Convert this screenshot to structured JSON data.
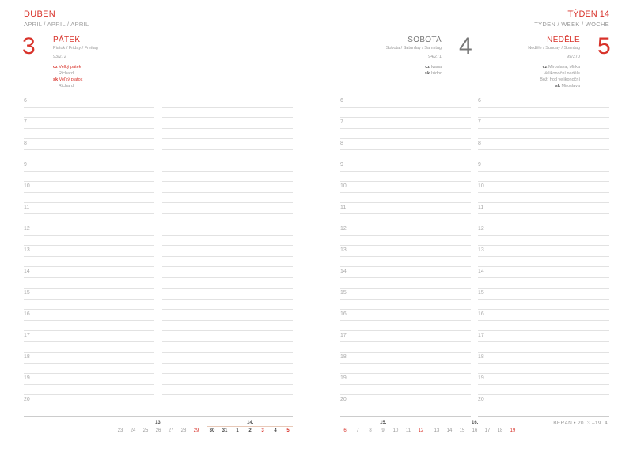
{
  "left_page": {
    "month": "DUBEN",
    "month_sub": "APRIL / APRIL / APRIL",
    "day": {
      "number": "3",
      "name": "PÁTEK",
      "translations": "Piatok / Friday / Freitag",
      "day_of_year": "93/272",
      "cz_label": "cz",
      "cz_text": "Velký pátek",
      "cz_name": "Richard",
      "sk_label": "sk",
      "sk_text": "Veľký piatok",
      "sk_name": "Richard"
    }
  },
  "right_page": {
    "week": "TÝDEN 14",
    "week_sub": "TÝDEN / WEEK / WOCHE",
    "saturday": {
      "number": "4",
      "name": "SOBOTA",
      "translations": "Sobota / Saturday / Samstag",
      "day_of_year": "94/271",
      "cz_label": "cz",
      "cz_text": "Ivana",
      "sk_label": "sk",
      "sk_text": "Izidor"
    },
    "sunday": {
      "number": "5",
      "name": "NEDĚLE",
      "translations": "Neděle / Sunday / Sonntag",
      "day_of_year": "95/270",
      "cz_label": "cz",
      "cz_text": "Miroslava, Mirka",
      "cz_line2": "Velikonoční neděle",
      "cz_line3": "Boží hod velikonoční",
      "sk_label": "sk",
      "sk_text": "Miroslava"
    },
    "footer": "BERAN • 20. 3.–19. 4."
  },
  "hours": [
    "6",
    "7",
    "8",
    "9",
    "10",
    "11",
    "12",
    "13",
    "14",
    "15",
    "16",
    "17",
    "18",
    "19",
    "20"
  ],
  "mini_calendar": {
    "left": [
      {
        "week": "13.",
        "days": [
          {
            "d": "23"
          },
          {
            "d": "24"
          },
          {
            "d": "25"
          },
          {
            "d": "26"
          },
          {
            "d": "27"
          },
          {
            "d": "28"
          },
          {
            "d": "29",
            "red": true
          }
        ]
      },
      {
        "week": "14.",
        "current": true,
        "days": [
          {
            "d": "30"
          },
          {
            "d": "31"
          },
          {
            "d": "1"
          },
          {
            "d": "2"
          },
          {
            "d": "3",
            "red": true
          },
          {
            "d": "4"
          },
          {
            "d": "5",
            "red": true
          }
        ]
      }
    ],
    "right": [
      {
        "week": "15.",
        "days": [
          {
            "d": "6",
            "red": true
          },
          {
            "d": "7"
          },
          {
            "d": "8"
          },
          {
            "d": "9"
          },
          {
            "d": "10"
          },
          {
            "d": "11"
          },
          {
            "d": "12",
            "red": true
          }
        ]
      },
      {
        "week": "16.",
        "days": [
          {
            "d": "13"
          },
          {
            "d": "14"
          },
          {
            "d": "15"
          },
          {
            "d": "16"
          },
          {
            "d": "17"
          },
          {
            "d": "18"
          },
          {
            "d": "19",
            "red": true
          }
        ]
      }
    ]
  },
  "colors": {
    "accent": "#d8322a",
    "text": "#888888",
    "rule": "#e2e2e2"
  }
}
